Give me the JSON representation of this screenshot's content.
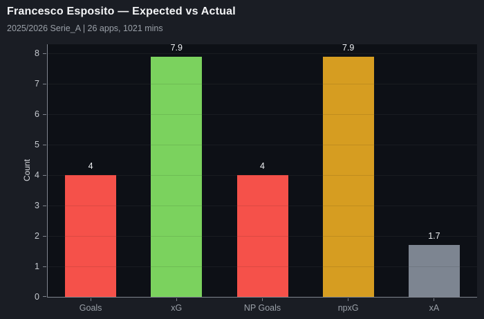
{
  "header": {
    "title": "Francesco Esposito — Expected vs Actual",
    "subtitle": "2025/2026 Serie_A | 26 apps, 1021 mins"
  },
  "chart_data": {
    "type": "bar",
    "title": "Francesco Esposito — Expected vs Actual",
    "subtitle": "2025/2026 Serie_A | 26 apps, 1021 mins",
    "categories": [
      "Goals",
      "xG",
      "NP Goals",
      "npxG",
      "xA"
    ],
    "values": [
      4,
      7.9,
      4,
      7.9,
      1.7
    ],
    "value_labels": [
      "4",
      "7.9",
      "4",
      "7.9",
      "1.7"
    ],
    "bar_colors": [
      "#f5514a",
      "#7bd25e",
      "#f5514a",
      "#d69d21",
      "#7d8591"
    ],
    "xlabel": "",
    "ylabel": "Count",
    "ylim": [
      0,
      8.3
    ],
    "yticks": [
      0,
      1,
      2,
      3,
      4,
      5,
      6,
      7,
      8
    ],
    "grid": "horizontal",
    "legend": "none"
  },
  "colors": {
    "figure_bg": "#1a1d24",
    "plot_bg": "#0d1016",
    "axis": "#80858f",
    "grid": "rgba(255,255,255,0.05)",
    "title": "#f3f4f6",
    "subtitle": "#9aa0a8",
    "y_tick_label": "#c7cbd1",
    "x_tick_label": "#9aa0a8",
    "value_label": "#eef0f3"
  }
}
